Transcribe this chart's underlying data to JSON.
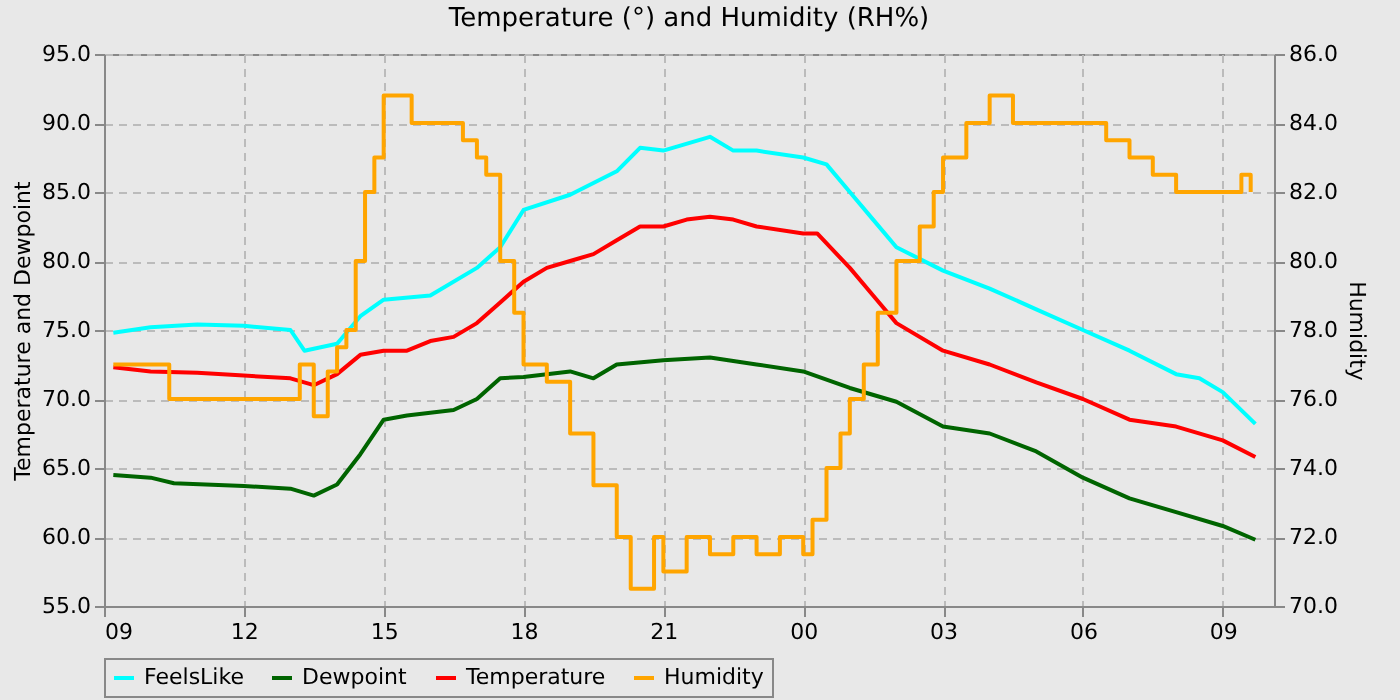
{
  "chart_data": {
    "type": "line",
    "title": "Temperature (°) and Humidity (RH%)",
    "ylabel": "Temperature and Dewpoint",
    "y2label": "Humidity",
    "xlim": [
      9,
      34.1
    ],
    "xticks": [
      {
        "value": 9,
        "label": "09"
      },
      {
        "value": 12,
        "label": "12"
      },
      {
        "value": 15,
        "label": "15"
      },
      {
        "value": 18,
        "label": "18"
      },
      {
        "value": 21,
        "label": "21"
      },
      {
        "value": 24,
        "label": "00"
      },
      {
        "value": 27,
        "label": "03"
      },
      {
        "value": 30,
        "label": "06"
      },
      {
        "value": 33,
        "label": "09"
      }
    ],
    "ylim": [
      55,
      95
    ],
    "yticks": [
      {
        "value": 55,
        "label": "55.0"
      },
      {
        "value": 60,
        "label": "60.0"
      },
      {
        "value": 65,
        "label": "65.0"
      },
      {
        "value": 70,
        "label": "70.0"
      },
      {
        "value": 75,
        "label": "75.0"
      },
      {
        "value": 80,
        "label": "80.0"
      },
      {
        "value": 85,
        "label": "85.0"
      },
      {
        "value": 90,
        "label": "90.0"
      },
      {
        "value": 95,
        "label": "95.0"
      }
    ],
    "y2lim": [
      70,
      86
    ],
    "y2ticks": [
      {
        "value": 70,
        "label": "70.0"
      },
      {
        "value": 72,
        "label": "72.0"
      },
      {
        "value": 74,
        "label": "74.0"
      },
      {
        "value": 76,
        "label": "76.0"
      },
      {
        "value": 78,
        "label": "78.0"
      },
      {
        "value": 80,
        "label": "80.0"
      },
      {
        "value": 82,
        "label": "82.0"
      },
      {
        "value": 84,
        "label": "84.0"
      },
      {
        "value": 86,
        "label": "86.0"
      }
    ],
    "grid": true,
    "legend": "bottom",
    "line_style": "solid",
    "series": [
      {
        "name": "FeelsLike",
        "color": "#00ffff",
        "x": [
          9.2,
          10,
          11,
          12,
          13,
          13.3,
          14,
          14.5,
          15,
          16,
          17,
          17.5,
          18,
          19,
          20,
          20.5,
          21,
          22,
          22.5,
          23,
          24,
          24.5,
          25,
          25.5,
          26,
          27,
          28,
          29,
          30,
          31,
          32,
          32.5,
          33,
          33.7
        ],
        "values": [
          74.8,
          75.2,
          75.4,
          75.3,
          75.0,
          73.5,
          74.0,
          76.0,
          77.2,
          77.5,
          79.5,
          81.0,
          83.7,
          84.8,
          86.5,
          88.2,
          88.0,
          89.0,
          88.0,
          88.0,
          87.5,
          87.0,
          85.0,
          83.0,
          81.0,
          79.3,
          78.0,
          76.5,
          75.0,
          73.5,
          71.8,
          71.5,
          70.5,
          68.2
        ]
      },
      {
        "name": "Dewpoint",
        "color": "#006400",
        "x": [
          9.2,
          10,
          10.5,
          12,
          13,
          13.5,
          14,
          14.5,
          15,
          15.5,
          16,
          16.5,
          17,
          17.5,
          18,
          19,
          19.5,
          20,
          21,
          22,
          23,
          24,
          25,
          26,
          27,
          28,
          29,
          30,
          31,
          32,
          33,
          33.7
        ],
        "values": [
          64.5,
          64.3,
          63.9,
          63.7,
          63.5,
          63.0,
          63.8,
          66.0,
          68.5,
          68.8,
          69.0,
          69.2,
          70.0,
          71.5,
          71.6,
          72.0,
          71.5,
          72.5,
          72.8,
          73.0,
          72.5,
          72.0,
          70.8,
          69.8,
          68.0,
          67.5,
          66.2,
          64.3,
          62.8,
          61.8,
          60.8,
          59.8
        ]
      },
      {
        "name": "Temperature",
        "color": "#ff0000",
        "x": [
          9.2,
          10,
          11,
          12,
          13,
          13.5,
          14,
          14.5,
          15,
          15.5,
          16,
          16.5,
          17,
          17.5,
          18,
          18.5,
          19,
          19.5,
          20,
          20.5,
          21,
          21.5,
          22,
          22.5,
          23,
          24,
          24.3,
          25,
          25.5,
          26,
          27,
          28,
          29,
          30,
          31,
          32,
          33,
          33.7
        ],
        "values": [
          72.3,
          72.0,
          71.9,
          71.7,
          71.5,
          71.0,
          71.8,
          73.2,
          73.5,
          73.5,
          74.2,
          74.5,
          75.5,
          77.0,
          78.5,
          79.5,
          80.0,
          80.5,
          81.5,
          82.5,
          82.5,
          83.0,
          83.2,
          83.0,
          82.5,
          82.0,
          82.0,
          79.5,
          77.5,
          75.5,
          73.5,
          72.5,
          71.2,
          70.0,
          68.5,
          68.0,
          67.0,
          65.8
        ]
      },
      {
        "name": "Humidity",
        "color": "#ffa500",
        "type": "step",
        "axis": "y2",
        "x": [
          9.2,
          10.4,
          13.2,
          13.5,
          13.8,
          14.0,
          14.2,
          14.4,
          14.6,
          14.8,
          15.0,
          15.6,
          16.5,
          16.7,
          17.0,
          17.2,
          17.5,
          17.8,
          18.0,
          18.5,
          19.0,
          19.5,
          20.0,
          20.3,
          20.8,
          21.0,
          21.5,
          22.0,
          22.5,
          23.0,
          23.5,
          24.0,
          24.2,
          24.5,
          24.8,
          25.0,
          25.3,
          25.6,
          26.0,
          26.5,
          26.8,
          27.0,
          27.5,
          28.0,
          28.5,
          29.0,
          30.0,
          30.5,
          31.0,
          31.5,
          32.0,
          33.0,
          33.4,
          33.6
        ],
        "values": [
          77.0,
          76.0,
          77.0,
          75.5,
          76.8,
          77.5,
          78.0,
          80.0,
          82.0,
          83.0,
          84.8,
          84.0,
          84.0,
          83.5,
          83.0,
          82.5,
          80.0,
          78.5,
          77.0,
          76.5,
          75.0,
          73.5,
          72.0,
          70.5,
          72.0,
          71.0,
          72.0,
          71.5,
          72.0,
          71.5,
          72.0,
          71.5,
          72.5,
          74.0,
          75.0,
          76.0,
          77.0,
          78.5,
          80.0,
          81.0,
          82.0,
          83.0,
          84.0,
          84.8,
          84.0,
          84.0,
          84.0,
          83.5,
          83.0,
          82.5,
          82.0,
          82.0,
          82.5,
          82.0
        ]
      }
    ]
  }
}
